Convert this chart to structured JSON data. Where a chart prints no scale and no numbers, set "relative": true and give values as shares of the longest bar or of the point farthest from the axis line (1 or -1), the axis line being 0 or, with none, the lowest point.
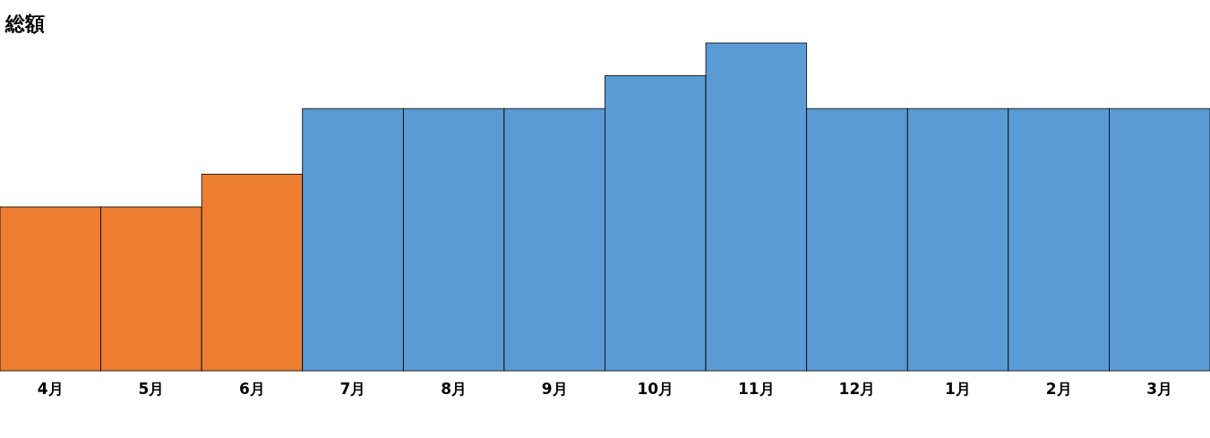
{
  "chart_data": {
    "type": "bar",
    "title": "総額",
    "relative": true,
    "categories": [
      "4月",
      "5月",
      "6月",
      "7月",
      "8月",
      "9月",
      "10月",
      "11月",
      "12月",
      "1月",
      "2月",
      "3月"
    ],
    "values": [
      0.5,
      0.5,
      0.6,
      0.8,
      0.8,
      0.8,
      0.9,
      1,
      0.8,
      0.8,
      0.8,
      0.8
    ],
    "colors": [
      "#ed7d31",
      "#ed7d31",
      "#ed7d31",
      "#5b9bd5",
      "#5b9bd5",
      "#5b9bd5",
      "#5b9bd5",
      "#5b9bd5",
      "#5b9bd5",
      "#5b9bd5",
      "#5b9bd5",
      "#5b9bd5"
    ]
  }
}
